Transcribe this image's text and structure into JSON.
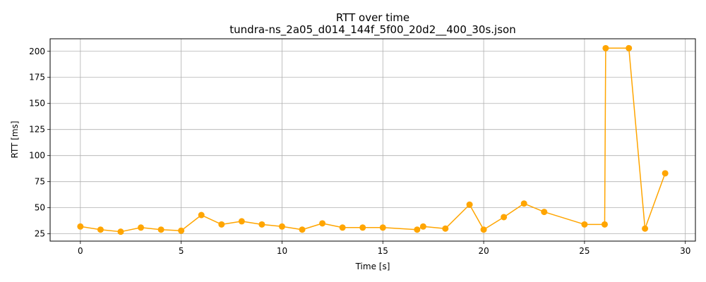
{
  "chart_data": {
    "type": "line",
    "title": "RTT over time",
    "subtitle": "tundra-ns_2a05_d014_144f_5f00_20d2__400_30s.json",
    "xlabel": "Time [s]",
    "ylabel": "RTT [ms]",
    "xlim": [
      -1.5,
      30.5
    ],
    "ylim": [
      18,
      212
    ],
    "xticks": [
      0,
      5,
      10,
      15,
      20,
      25,
      30
    ],
    "yticks": [
      25,
      50,
      75,
      100,
      125,
      150,
      175,
      200
    ],
    "grid": true,
    "color": "#FFA500",
    "x": [
      0,
      1,
      2,
      3,
      4,
      5,
      6,
      7,
      8,
      9,
      10,
      11,
      12,
      13,
      14,
      15,
      16.7,
      17,
      18.1,
      19.3,
      20,
      21,
      22,
      23,
      25,
      26,
      26.05,
      27.2,
      28,
      29
    ],
    "y": [
      32,
      29,
      27,
      31,
      29,
      28,
      43,
      34,
      37,
      34,
      32,
      29,
      35,
      31,
      31,
      31,
      29,
      32,
      30,
      53,
      29,
      41,
      54,
      46,
      34,
      34,
      203,
      203,
      30,
      83
    ]
  }
}
